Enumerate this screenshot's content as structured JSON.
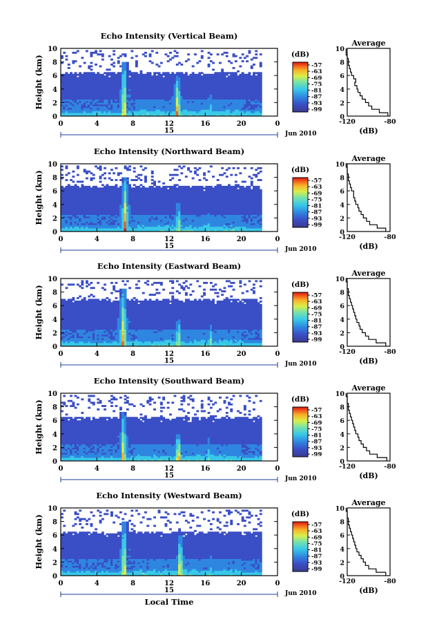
{
  "chart_data": [
    {
      "type": "heatmap",
      "title": "Echo Intensity (Vertical Beam)",
      "ylabel": "Height (km)",
      "yticks": [
        "0",
        "2",
        "4",
        "6",
        "8",
        "10"
      ],
      "xticks": [
        "0",
        "4",
        "8",
        "12",
        "16",
        "20",
        "0"
      ],
      "ylim": [
        0,
        10
      ],
      "xlim": [
        0,
        24
      ],
      "date_day": "15",
      "date_month": "Jun 2010",
      "colorbar_unit": "(dB)",
      "colorbar_ticks": [
        "-57",
        "-63",
        "-69",
        "-75",
        "-81",
        "-87",
        "-93",
        "-99"
      ],
      "top_km": 6.3,
      "plumes": [
        {
          "t": 6.9,
          "h": 8.0,
          "w": 0.35,
          "s": 0.95
        },
        {
          "t": 12.8,
          "h": 5.8,
          "w": 0.35,
          "s": 1.0
        },
        {
          "t": 16.4,
          "h": 3.5,
          "w": 0.25,
          "s": 0.6
        }
      ],
      "avg": {
        "title": "Average",
        "xticks": [
          "-120",
          "-80"
        ],
        "xlabel": "(dB)",
        "yticks": [
          "0",
          "2",
          "4",
          "6",
          "8",
          "10"
        ],
        "height_km": [
          0,
          0.5,
          1,
          1.5,
          2,
          2.5,
          3,
          3.5,
          4,
          4.5,
          5,
          5.5,
          6,
          6.5,
          7,
          7.5,
          8,
          8.5,
          9,
          9.5,
          10
        ],
        "db": [
          -82,
          -90,
          -97,
          -100,
          -103,
          -106,
          -108,
          -110,
          -111,
          -113,
          -112,
          -114,
          -116,
          -117,
          -118,
          -119,
          -119,
          -120,
          -121,
          -121,
          -121
        ]
      }
    },
    {
      "type": "heatmap",
      "title": "Echo Intensity (Northward Beam)",
      "ylabel": "Height (km)",
      "yticks": [
        "0",
        "2",
        "4",
        "6",
        "8",
        "10"
      ],
      "xticks": [
        "0",
        "4",
        "8",
        "12",
        "16",
        "20",
        "0"
      ],
      "ylim": [
        0,
        10
      ],
      "xlim": [
        0,
        24
      ],
      "date_day": "15",
      "date_month": "Jun 2010",
      "colorbar_unit": "(dB)",
      "colorbar_ticks": [
        "-57",
        "-63",
        "-69",
        "-75",
        "-81",
        "-87",
        "-93",
        "-99"
      ],
      "top_km": 6.6,
      "plumes": [
        {
          "t": 7.0,
          "h": 8.0,
          "w": 0.35,
          "s": 0.95
        },
        {
          "t": 12.9,
          "h": 4.2,
          "w": 0.3,
          "s": 0.8
        },
        {
          "t": 16.3,
          "h": 3.0,
          "w": 0.25,
          "s": 0.5
        }
      ],
      "avg": {
        "title": "Average",
        "xticks": [
          "-120",
          "-80"
        ],
        "xlabel": "(dB)",
        "yticks": [
          "0",
          "2",
          "4",
          "6",
          "8",
          "10"
        ],
        "height_km": [
          0,
          0.5,
          1,
          1.5,
          2,
          2.5,
          3,
          3.5,
          4,
          4.5,
          5,
          5.5,
          6,
          6.5,
          7,
          7.5,
          8,
          8.5,
          9,
          9.5,
          10
        ],
        "db": [
          -84,
          -92,
          -99,
          -102,
          -105,
          -107,
          -109,
          -110,
          -112,
          -113,
          -114,
          -114,
          -116,
          -117,
          -118,
          -119,
          -119,
          -120,
          -120,
          -121,
          -120
        ]
      }
    },
    {
      "type": "heatmap",
      "title": "Echo Intensity (Eastward Beam)",
      "ylabel": "Height (km)",
      "yticks": [
        "0",
        "2",
        "4",
        "6",
        "8",
        "10"
      ],
      "xticks": [
        "0",
        "4",
        "8",
        "12",
        "16",
        "20",
        "0"
      ],
      "ylim": [
        0,
        10
      ],
      "xlim": [
        0,
        24
      ],
      "date_day": "15",
      "date_month": "Jun 2010",
      "colorbar_unit": "(dB)",
      "colorbar_ticks": [
        "-57",
        "-63",
        "-69",
        "-75",
        "-81",
        "-87",
        "-93",
        "-99"
      ],
      "top_km": 6.8,
      "plumes": [
        {
          "t": 6.8,
          "h": 8.5,
          "w": 0.4,
          "s": 0.95
        },
        {
          "t": 12.9,
          "h": 4.0,
          "w": 0.3,
          "s": 0.85
        },
        {
          "t": 16.5,
          "h": 3.2,
          "w": 0.25,
          "s": 0.55
        }
      ],
      "avg": {
        "title": "Average",
        "xticks": [
          "-120",
          "-80"
        ],
        "xlabel": "(dB)",
        "yticks": [
          "0",
          "2",
          "4",
          "6",
          "8",
          "10"
        ],
        "height_km": [
          0,
          0.5,
          1,
          1.5,
          2,
          2.5,
          3,
          3.5,
          4,
          4.5,
          5,
          5.5,
          6,
          6.5,
          7,
          7.5,
          8,
          8.5,
          9,
          9.5,
          10
        ],
        "db": [
          -84,
          -93,
          -100,
          -103,
          -106,
          -108,
          -109,
          -111,
          -112,
          -113,
          -114,
          -115,
          -116,
          -117,
          -118,
          -119,
          -119,
          -120,
          -120,
          -121,
          -120
        ]
      }
    },
    {
      "type": "heatmap",
      "title": "Echo Intensity (Southward Beam)",
      "ylabel": "Height (km)",
      "yticks": [
        "0",
        "2",
        "4",
        "6",
        "8",
        "10"
      ],
      "xticks": [
        "0",
        "4",
        "8",
        "12",
        "16",
        "20",
        "0"
      ],
      "ylim": [
        0,
        10
      ],
      "xlim": [
        0,
        24
      ],
      "date_day": "15",
      "date_month": "Jun 2010",
      "colorbar_unit": "(dB)",
      "colorbar_ticks": [
        "-57",
        "-63",
        "-69",
        "-75",
        "-81",
        "-87",
        "-93",
        "-99"
      ],
      "top_km": 6.3,
      "plumes": [
        {
          "t": 6.8,
          "h": 7.2,
          "w": 0.35,
          "s": 0.9
        },
        {
          "t": 12.9,
          "h": 4.0,
          "w": 0.35,
          "s": 1.0
        },
        {
          "t": 16.3,
          "h": 3.3,
          "w": 0.25,
          "s": 0.55
        }
      ],
      "avg": {
        "title": "Average",
        "xticks": [
          "-120",
          "-80"
        ],
        "xlabel": "(dB)",
        "yticks": [
          "0",
          "2",
          "4",
          "6",
          "8",
          "10"
        ],
        "height_km": [
          0,
          0.5,
          1,
          1.5,
          2,
          2.5,
          3,
          3.5,
          4,
          4.5,
          5,
          5.5,
          6,
          6.5,
          7,
          7.5,
          8,
          8.5,
          9,
          9.5,
          10
        ],
        "db": [
          -83,
          -92,
          -99,
          -102,
          -105,
          -107,
          -109,
          -110,
          -112,
          -113,
          -114,
          -115,
          -116,
          -117,
          -118,
          -119,
          -119,
          -120,
          -120,
          -121,
          -121
        ]
      }
    },
    {
      "type": "heatmap",
      "title": "Echo Intensity (Westward Beam)",
      "ylabel": "Height (km)",
      "yticks": [
        "0",
        "2",
        "4",
        "6",
        "8",
        "10"
      ],
      "xticks": [
        "0",
        "4",
        "8",
        "12",
        "16",
        "20",
        "0"
      ],
      "ylim": [
        0,
        10
      ],
      "xlim": [
        0,
        24
      ],
      "date_day": "15",
      "date_month": "Jun 2010",
      "xlabel": "Local Time",
      "colorbar_unit": "(dB)",
      "colorbar_ticks": [
        "-57",
        "-63",
        "-69",
        "-75",
        "-81",
        "-87",
        "-93",
        "-99"
      ],
      "top_km": 6.3,
      "plumes": [
        {
          "t": 6.9,
          "h": 8.0,
          "w": 0.35,
          "s": 0.9
        },
        {
          "t": 13.1,
          "h": 5.8,
          "w": 0.3,
          "s": 1.0
        },
        {
          "t": 16.6,
          "h": 3.5,
          "w": 0.25,
          "s": 0.55
        }
      ],
      "avg": {
        "title": "Average",
        "xticks": [
          "-120",
          "-80"
        ],
        "xlabel": "(dB)",
        "yticks": [
          "0",
          "2",
          "4",
          "6",
          "8",
          "10"
        ],
        "height_km": [
          0,
          0.5,
          1,
          1.5,
          2,
          2.5,
          3,
          3.5,
          4,
          4.5,
          5,
          5.5,
          6,
          6.5,
          7,
          7.5,
          8,
          8.5,
          9,
          9.5,
          10
        ],
        "db": [
          -84,
          -93,
          -100,
          -103,
          -105,
          -107,
          -109,
          -111,
          -112,
          -113,
          -114,
          -115,
          -116,
          -117,
          -118,
          -119,
          -119,
          -120,
          -120,
          -121,
          -121
        ]
      }
    }
  ]
}
